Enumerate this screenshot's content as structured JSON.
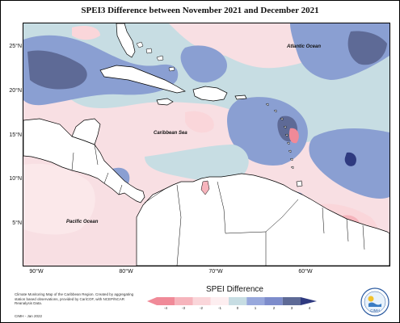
{
  "title": "SPEI3 Difference between November 2021 and December 2021",
  "lat_labels": [
    "25°N",
    "20°N",
    "15°N",
    "10°N",
    "5°N"
  ],
  "lon_labels": [
    "90°W",
    "80°W",
    "70°W",
    "60°W"
  ],
  "map_labels": {
    "atlantic": "Atlantic Ocean",
    "caribbean": "Caribbean Sea",
    "pacific": "Pacific Ocean"
  },
  "legend": {
    "title": "SPEI Difference",
    "ticks": [
      "-4",
      "-3",
      "-2",
      "-1",
      "0",
      "1",
      "2",
      "3",
      "4"
    ],
    "colors": [
      "#f08a98",
      "#f6b4bc",
      "#fad6da",
      "#fdeef0",
      "#ffffff",
      "#c7dde3",
      "#98a8dc",
      "#7d8ccb",
      "#5e6a96",
      "#2f3a80"
    ]
  },
  "credit": {
    "text": "Climate Monitoring Map of the Caribbean Region. Created by aggregating station based observations, provided by CariCOF, with NCEP/NCAR Reanalysis Data.",
    "date": "CIMH - Jan 2022"
  },
  "logo_text": "CIMH"
}
